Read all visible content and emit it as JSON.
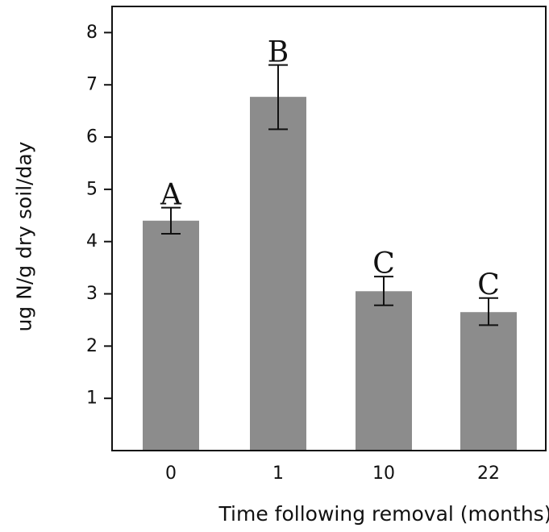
{
  "chart_data": {
    "type": "bar",
    "categories": [
      "0",
      "1",
      "10",
      "22"
    ],
    "values": [
      4.4,
      6.77,
      3.05,
      2.65
    ],
    "error_low": [
      4.15,
      6.15,
      2.78,
      2.4
    ],
    "error_high": [
      4.65,
      7.38,
      3.33,
      2.92
    ],
    "significance_labels": [
      "A",
      "B",
      "C",
      "C"
    ],
    "xlabel": "Time following removal (months)",
    "ylabel": "ug N/g dry soil/day",
    "ylim": [
      0,
      8.5
    ],
    "yticks": [
      1,
      2,
      3,
      4,
      5,
      6,
      7,
      8
    ],
    "grid": false,
    "legend": "none"
  },
  "colors": {
    "bar": "#8c8c8c",
    "axis": "#111111",
    "error": "#111111"
  }
}
